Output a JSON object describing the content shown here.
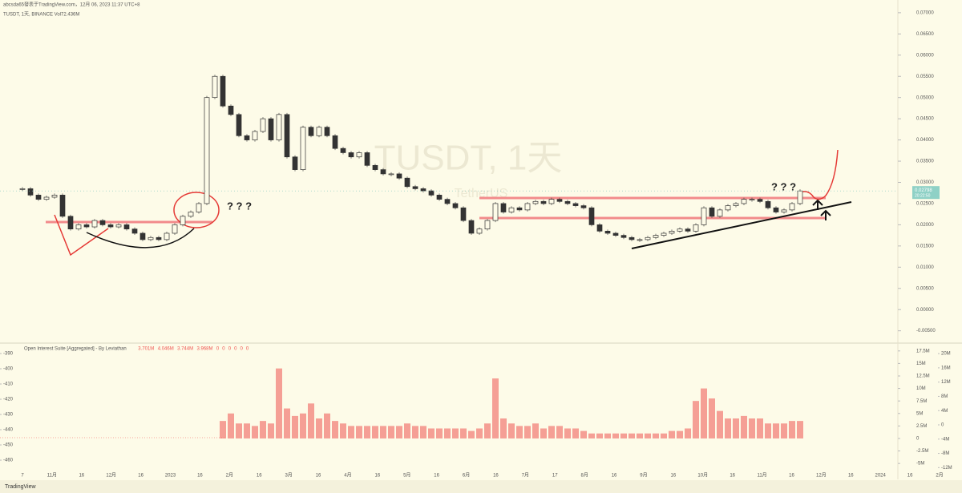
{
  "header": {
    "publisher": "abcsda65發表于TradingView.com，12月 06, 2023 11:37 UTC+8",
    "symbol_line": "TUSDT, 1天, BINANCE  Vol72.436M"
  },
  "chart": {
    "type": "candlestick",
    "watermark": "TUSDT, 1天",
    "watermark_sub": "TetherUS",
    "closes": [
      0.0285,
      0.027,
      0.026,
      0.0265,
      0.027,
      0.022,
      0.019,
      0.02,
      0.0195,
      0.021,
      0.02,
      0.0195,
      0.02,
      0.019,
      0.018,
      0.0165,
      0.017,
      0.0165,
      0.018,
      0.02,
      0.022,
      0.023,
      0.025,
      0.05,
      0.055,
      0.048,
      0.046,
      0.041,
      0.04,
      0.042,
      0.045,
      0.04,
      0.046,
      0.036,
      0.033,
      0.043,
      0.041,
      0.043,
      0.041,
      0.038,
      0.037,
      0.036,
      0.037,
      0.034,
      0.033,
      0.032,
      0.032,
      0.031,
      0.029,
      0.0285,
      0.028,
      0.027,
      0.026,
      0.025,
      0.024,
      0.021,
      0.018,
      0.019,
      0.021,
      0.025,
      0.023,
      0.024,
      0.0235,
      0.025,
      0.0255,
      0.025,
      0.026,
      0.0255,
      0.025,
      0.0245,
      0.024,
      0.02,
      0.0185,
      0.018,
      0.0175,
      0.017,
      0.0165,
      0.0165,
      0.017,
      0.0175,
      0.018,
      0.0185,
      0.019,
      0.0185,
      0.02,
      0.024,
      0.022,
      0.0235,
      0.0245,
      0.025,
      0.026,
      0.026,
      0.0255,
      0.024,
      0.023,
      0.0235,
      0.025,
      0.02798
    ],
    "last_price": {
      "value": 0.02798,
      "label": "0.02798"
    },
    "countdown": "20:22:50",
    "ylim": [
      -0.0079,
      0.073
    ],
    "yticks": [
      {
        "value": 0.07,
        "label": "0.07000"
      },
      {
        "value": 0.065,
        "label": "0.06500"
      },
      {
        "value": 0.06,
        "label": "0.06000"
      },
      {
        "value": 0.055,
        "label": "0.05500"
      },
      {
        "value": 0.05,
        "label": "0.05000"
      },
      {
        "value": 0.045,
        "label": "0.04500"
      },
      {
        "value": 0.04,
        "label": "0.04000"
      },
      {
        "value": 0.035,
        "label": "0.03500"
      },
      {
        "value": 0.03,
        "label": "0.03000"
      },
      {
        "value": 0.025,
        "label": "0.02500"
      },
      {
        "value": 0.02,
        "label": "0.02000"
      },
      {
        "value": 0.015,
        "label": "0.01500"
      },
      {
        "value": 0.01,
        "label": "0.01000"
      },
      {
        "value": 0.005,
        "label": "0.00500"
      },
      {
        "value": 0,
        "label": "0.00000"
      },
      {
        "value": -0.005,
        "label": "-0.00500"
      }
    ]
  },
  "indicator": {
    "title": "Open Interest Suite [Aggregated] - By Leviathan",
    "readings": [
      "3.701M",
      "4.046M",
      "3.744M",
      "3.968M",
      "0",
      "0",
      "0",
      "0",
      "0",
      "0"
    ],
    "color": "#ef5350",
    "open_interest": [
      null,
      null,
      null,
      null,
      null,
      null,
      null,
      null,
      null,
      null,
      null,
      null,
      null,
      null,
      null,
      null,
      null,
      null,
      null,
      null,
      null,
      null,
      null,
      null,
      null,
      3.5,
      5,
      3,
      3,
      2.5,
      3.5,
      3,
      14,
      6,
      4.5,
      5,
      7,
      4,
      5,
      3.5,
      3,
      2.5,
      2.5,
      2.5,
      2.5,
      2.5,
      2.5,
      2.5,
      3,
      2.5,
      2.5,
      2,
      2,
      2,
      2,
      2,
      1.5,
      2,
      3,
      12,
      4,
      3,
      2.5,
      2.5,
      3,
      2,
      2.5,
      2.5,
      2,
      2,
      1.5,
      1,
      1,
      1,
      1,
      1,
      1,
      1,
      1,
      1,
      1,
      1.5,
      1.5,
      2,
      7.5,
      10,
      8,
      5.5,
      4,
      4,
      4.5,
      4,
      4,
      3,
      3,
      3,
      3.5,
      3.5
    ],
    "ylim": [
      -6.9,
      18.75
    ],
    "yticks": [
      {
        "value": 17.5,
        "label": "17.5M"
      },
      {
        "value": 15,
        "label": "15M"
      },
      {
        "value": 12.5,
        "label": "12.5M"
      },
      {
        "value": 10,
        "label": "10M"
      },
      {
        "value": 7.5,
        "label": "7.5M"
      },
      {
        "value": 5,
        "label": "5M"
      },
      {
        "value": 2.5,
        "label": "2.5M"
      },
      0,
      {
        "value": -2.5,
        "label": "-2.5M"
      },
      {
        "value": -5,
        "label": "-5M"
      }
    ],
    "left_ylim": [
      -468.4,
      -384.2
    ],
    "left_yticks": [
      -390,
      -400,
      -410,
      -420,
      -430,
      -440,
      -450,
      -460
    ],
    "far_ylim": [
      -13.5,
      22.5
    ],
    "far_yticks": [
      {
        "value": 20,
        "label": "20M"
      },
      {
        "value": 16,
        "label": "16M"
      },
      {
        "value": 12,
        "label": "12M"
      },
      {
        "value": 8,
        "label": "8M"
      },
      {
        "value": 4,
        "label": "4M"
      },
      0,
      {
        "value": -4,
        "label": "-4M"
      },
      {
        "value": -8,
        "label": "-8M"
      },
      {
        "value": -12,
        "label": "-12M"
      }
    ]
  },
  "time_axis": [
    "7",
    "11月",
    "16",
    "12月",
    "16",
    "2023",
    "16",
    "2月",
    "16",
    "3月",
    "16",
    "4月",
    "16",
    "5月",
    "16",
    "6月",
    "16",
    "7月",
    "17",
    "8月",
    "16",
    "9月",
    "16",
    "10月",
    "16",
    "11月",
    "16",
    "12月",
    "16",
    "2024",
    "16",
    "2月"
  ],
  "annotations": {
    "questions": [
      "? ? ?",
      "? ? ?"
    ]
  },
  "footer": {
    "brand": "TradingView"
  }
}
